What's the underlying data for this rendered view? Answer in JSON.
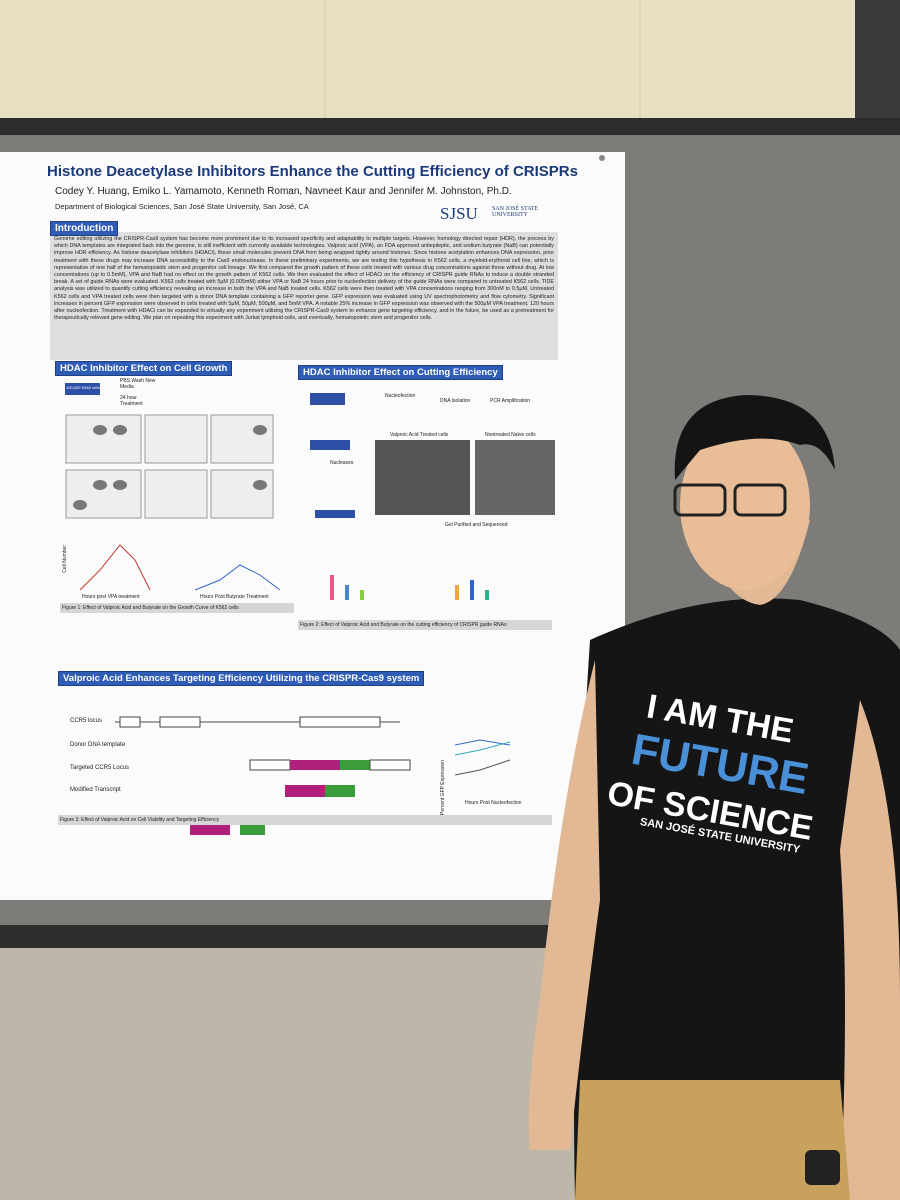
{
  "poster": {
    "title": "Histone Deacetylase Inhibitors Enhance the Cutting Efficiency of CRISPRs",
    "authors": "Codey Y. Huang, Emiko L. Yamamoto, Kenneth Roman, Navneet Kaur and Jennifer M. Johnston, Ph.D.",
    "department": "Department of Biological Sciences, San José State University, San José, CA",
    "logo": {
      "mark": "SJSU",
      "name": "SAN JOSÉ STATE UNIVERSITY"
    },
    "introduction": {
      "heading": "Introduction",
      "text": "Genome editing utilizing the CRISPR-Cas9 system has become more prominent due to its increased specificity and adaptability to multiple targets. However, homology directed repair (HDR), the process by which DNA templates are integrated back into the genome, is still inefficient with currently available technologies. Valproic acid (VPA), an FDA approved antiepileptic, and sodium butyrate (NaB) can potentially improve HDR efficiency. As histone deacetylase inhibitors (HDACi), these small molecules prevent DNA from being wrapped tightly around histones. Since histone acetylation enhances DNA expression, prior treatment with these drugs may increase DNA accessibility to the Cas9 endonuclease. In these preliminary experiments, we are testing this hypothesis in K562 cells, a myeloid-erythroid cell line, which is representative of one half of the hematopoietic stem and progenitor cell lineage. We first compared the growth pattern of these cells treated with various drug concentrations against those without drug. At low concentrations (up to 0.5mM), VPA and NaB had no effect on the growth pattern of K562 cells. We then evaluated the effect of HDACi on the efficiency of CRISPR guide RNAs to induce a double stranded break. A set of guide RNAs were evaluated. K562 cells treated with 5μM (0.005mM) either VPA or NaB 24 hours prior to nucleofection delivery of the guide RNAs were compared to untreated K562 cells. TIDE analysis was utilized to quantify cutting efficiency revealing an increase in both the VPA and NaB treated cells. K562 cells were then treated with VPA concentrations ranging from 300nM to 0.5μM. Untreated K562 cells and VPA treated cells were then targeted with a donor DNA template containing a GFP reporter gene. GFP expression was evaluated using UV spectrophotometry and flow cytometry. Significant increases in percent GFP expression were observed in cells treated with 5μM, 50μM, 500μM, and 5mM VPA. A notable 25% increase in GFP expression was observed with the 500μM VPA treatment, 120 hours after nucleofection. Treatment with HDACi can be expanded to virtually any experiment utilizing the CRISPR-Cas9 system to enhance gene targeting efficiency, and in the future, be used as a pretreatment for therapeutically relevant gene editing. We plan on repeating this experiment with Jurkat lymphoid cells, and eventually, hematopoietic stem and progenitor cells."
    },
    "growth": {
      "heading": "HDAC Inhibitor Effect on Cell Growth",
      "cells": "100,000 K562 cells",
      "step": "PBS Wash New Media",
      "treatment": "24 hour Treatment",
      "x_label_b": "Hours post VPA treatment",
      "x_label_c": "Hours Post Butyrate Treatment",
      "y_label": "Cell Number",
      "caption": "Figure 1: Effect of Valproic Acid and Butyrate on the Growth Curve of K562 cells"
    },
    "cutting": {
      "heading": "HDAC Inhibitor Effect on Cutting Efficiency",
      "nucleofection": "Nucleofection",
      "isolation": "DNA Isolation",
      "pcr": "PCR Amplification",
      "vpa_cells": "Valproic Acid Treated cells",
      "naive_cells": "Nontreated Naïve cells",
      "gel": "Gel Purified and Sequenced",
      "nucleases": "Nucleases",
      "caption": "Figure 2: Effect of Valproic Acid and Butyrate on the cutting efficiency of CRISPR guide RNAs"
    },
    "targeting": {
      "heading": "Valproic Acid Enhances Targeting Efficiency Utilizing the CRISPR-Cas9 system",
      "rows": [
        "CCR5 locus",
        "Donor DNA template",
        "Targeted CCR5 Locus",
        "Modified Transcript"
      ],
      "y_label": "Percent GFP Expression",
      "x_label": "Hours Post Nucleofection",
      "caption": "Figure 3: Effect of Valproic Acid on Cell Viability and Targeting Efficiency"
    }
  },
  "shirt": {
    "lines": [
      "I AM THE",
      "FUTURE",
      "OF SCIENCE"
    ],
    "university": "SAN JOSÉ STATE UNIVERSITY"
  }
}
